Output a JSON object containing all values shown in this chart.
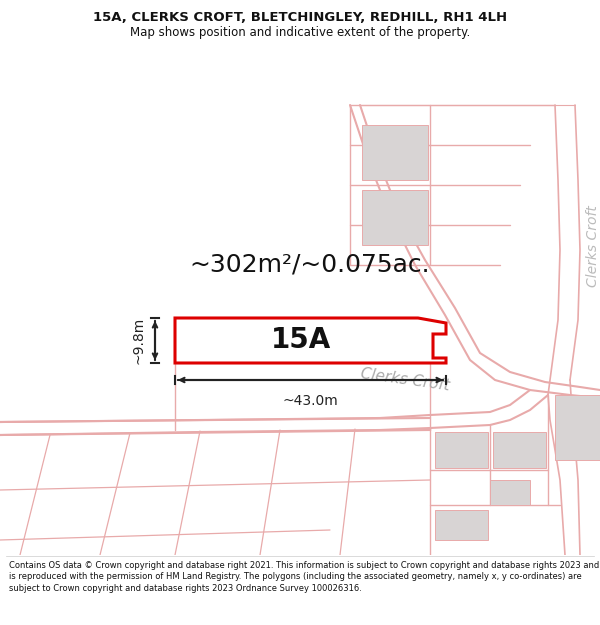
{
  "title_line1": "15A, CLERKS CROFT, BLETCHINGLEY, REDHILL, RH1 4LH",
  "title_line2": "Map shows position and indicative extent of the property.",
  "area_text": "~302m²/~0.075ac.",
  "label_15A": "15A",
  "dim_width": "~43.0m",
  "dim_height": "~9.8m",
  "road_label": "Clerks Croft",
  "road_label2": "Clerks Croft",
  "footer": "Contains OS data © Crown copyright and database right 2021. This information is subject to Crown copyright and database rights 2023 and is reproduced with the permission of HM Land Registry. The polygons (including the associated geometry, namely x, y co-ordinates) are subject to Crown copyright and database rights 2023 Ordnance Survey 100026316.",
  "bg_color": "#ffffff",
  "plot_color_fill": "#ffffff",
  "plot_color_stroke": "#dd0000",
  "road_line_color": "#e8aaaa",
  "building_color": "#d8d4d4",
  "dim_line_color": "#222222",
  "text_color": "#111111",
  "road_text_color": "#aaaaaa",
  "title_fontsize": 9.5,
  "subtitle_fontsize": 8.5,
  "area_fontsize": 18,
  "label_fontsize": 20,
  "dim_fontsize": 10,
  "road_label_fontsize": 11,
  "road_label2_fontsize": 10
}
